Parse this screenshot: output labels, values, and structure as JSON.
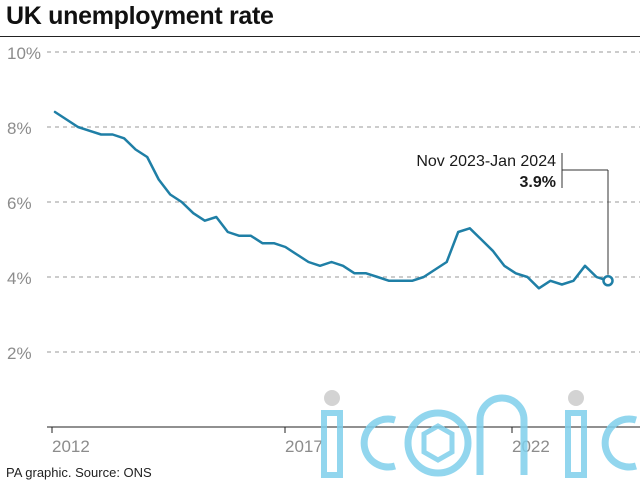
{
  "title": "UK unemployment rate",
  "footer": "PA graphic. Source: ONS",
  "watermark": "iconic",
  "colors": {
    "line": "#1f7fa6",
    "grid": "#9a9a9a",
    "tick_text": "#8c8c8c",
    "watermark": "#7fd0ec"
  },
  "chart_data": {
    "type": "line",
    "title": "UK unemployment rate",
    "xlabel": "",
    "ylabel": "",
    "x_ticks": [
      "2012",
      "2017",
      "2022"
    ],
    "y_ticks": [
      "10%",
      "8%",
      "6%",
      "4%",
      "2%"
    ],
    "ylim": [
      0,
      10
    ],
    "grid": true,
    "series": [
      {
        "values": [
          8.4,
          8.2,
          8.0,
          7.9,
          7.8,
          7.8,
          7.7,
          7.4,
          7.2,
          6.6,
          6.2,
          6.0,
          5.7,
          5.5,
          5.6,
          5.2,
          5.1,
          5.1,
          4.9,
          4.9,
          4.8,
          4.6,
          4.4,
          4.3,
          4.4,
          4.3,
          4.1,
          4.1,
          4.0,
          3.9,
          3.9,
          3.9,
          4.0,
          4.2,
          4.4,
          5.2,
          5.3,
          5.0,
          4.7,
          4.3,
          4.1,
          4.0,
          3.7,
          3.9,
          3.8,
          3.9,
          4.3,
          4.0,
          3.9
        ]
      }
    ],
    "annotation": {
      "label": "Nov 2023-Jan 2024",
      "value": "3.9%"
    }
  }
}
